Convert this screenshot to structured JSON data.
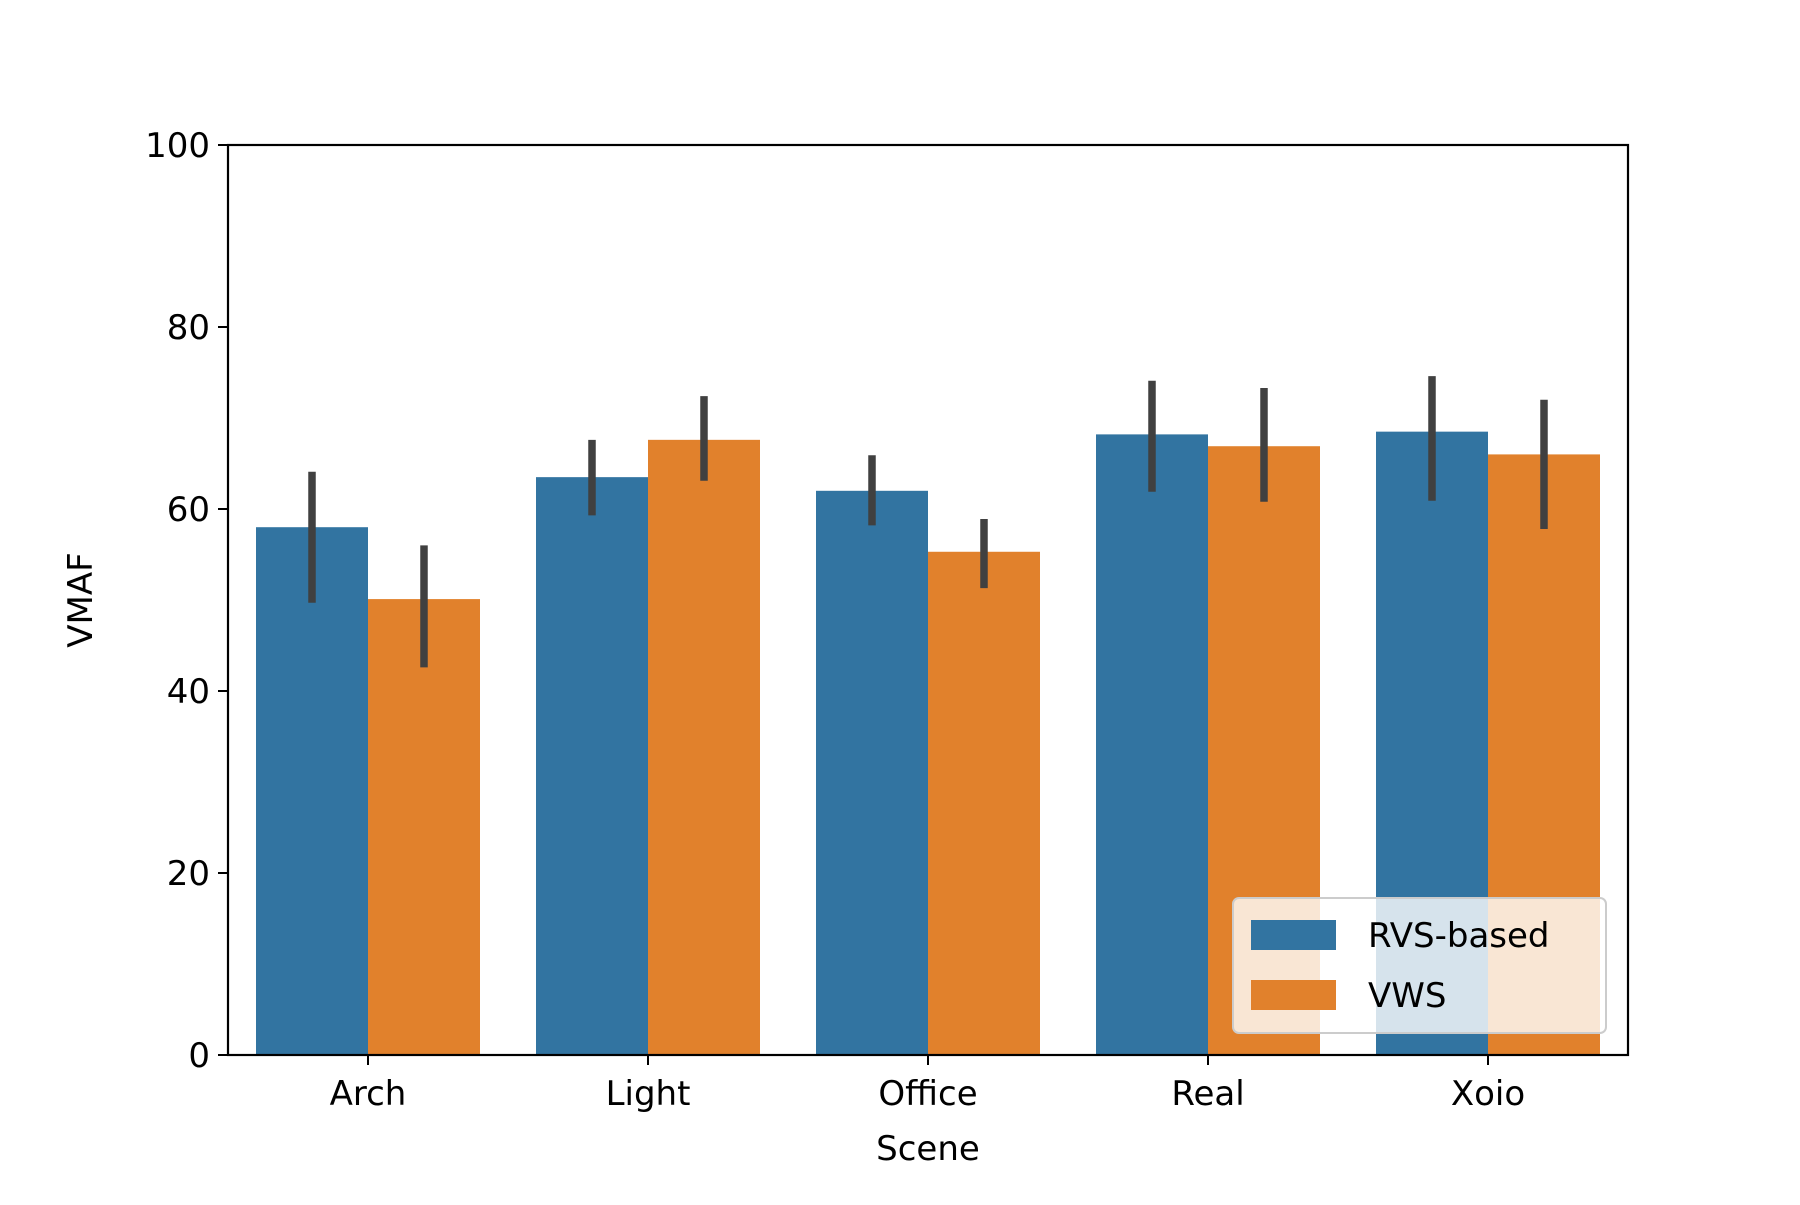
{
  "chart_data": {
    "type": "bar",
    "title": "",
    "xlabel": "Scene",
    "ylabel": "VMAF",
    "categories": [
      "Arch",
      "Light",
      "Office",
      "Real",
      "Xoio"
    ],
    "series": [
      {
        "name": "RVS-based",
        "color": "#3274a1",
        "values": [
          58.0,
          63.5,
          62.0,
          68.2,
          68.5
        ],
        "error_low": [
          49.7,
          59.3,
          58.2,
          61.9,
          60.9
        ],
        "error_high": [
          64.1,
          67.6,
          65.9,
          74.1,
          74.6
        ]
      },
      {
        "name": "VWS",
        "color": "#e1812c",
        "values": [
          50.1,
          67.6,
          55.3,
          66.9,
          66.0
        ],
        "error_low": [
          42.6,
          63.1,
          51.3,
          60.8,
          57.8
        ],
        "error_high": [
          56.0,
          72.4,
          58.9,
          73.3,
          72.0
        ]
      }
    ],
    "ylim": [
      0,
      100
    ],
    "yticks": [
      "0",
      "20",
      "40",
      "60",
      "80",
      "100"
    ],
    "error_bar_color": "#404040",
    "grid": false,
    "legend_position": "lower-right"
  }
}
